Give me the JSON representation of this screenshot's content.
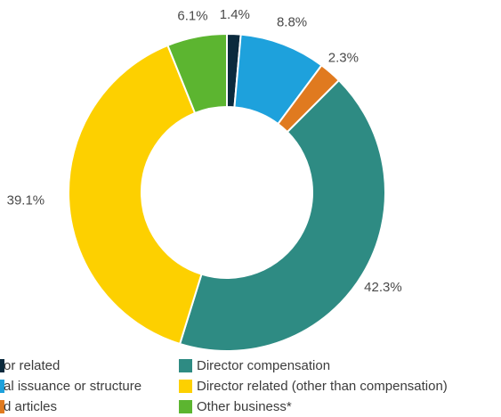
{
  "chart_data": {
    "type": "pie",
    "donut": true,
    "title": "",
    "slices": [
      {
        "name": "Auditor related",
        "value": 1.4,
        "label": "1.4%",
        "color": "#0b2a3d"
      },
      {
        "name": "Capital issuance or structure",
        "value": 8.8,
        "label": "8.8%",
        "color": "#1ea1dc"
      },
      {
        "name": "Bylaws and articles",
        "value": 2.3,
        "label": "2.3%",
        "color": "#e07a1f"
      },
      {
        "name": "Director compensation",
        "value": 42.3,
        "label": "42.3%",
        "color": "#2e8b83"
      },
      {
        "name": "Director related (other than compensation)",
        "value": 39.1,
        "label": "39.1%",
        "color": "#fdd000"
      },
      {
        "name": "Other business*",
        "value": 6.1,
        "label": "6.1%",
        "color": "#5cb530"
      }
    ],
    "legend": {
      "placement": "bottom",
      "entries": [
        {
          "text": "or related",
          "color": "#0b2a3d"
        },
        {
          "text": "al issuance or structure",
          "color": "#1ea1dc"
        },
        {
          "text": "d articles",
          "color": "#e07a1f"
        },
        {
          "text": "Director compensation",
          "color": "#2e8b83"
        },
        {
          "text": "Director related (other than compensation)",
          "color": "#fdd000"
        },
        {
          "text": "Other business*",
          "color": "#5cb530"
        }
      ]
    }
  }
}
